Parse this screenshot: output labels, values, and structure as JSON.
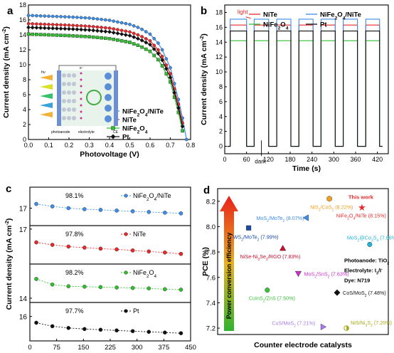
{
  "panels": {
    "a": {
      "letter": "a"
    },
    "b": {
      "letter": "b"
    },
    "c": {
      "letter": "c"
    },
    "d": {
      "letter": "d"
    }
  },
  "chart_data": [
    {
      "id": "a",
      "type": "line",
      "xlabel": "Photovoltage (V)",
      "ylabel": "Current density (mA cm⁻²)",
      "xlim": [
        0.0,
        0.8
      ],
      "ylim": [
        0,
        18
      ],
      "xticks": [
        "0.0",
        "0.1",
        "0.2",
        "0.3",
        "0.4",
        "0.5",
        "0.6",
        "0.7",
        "0.8"
      ],
      "yticks": [
        "0",
        "2",
        "4",
        "6",
        "8",
        "10",
        "12",
        "14",
        "16",
        "18"
      ],
      "legend_position": "center-right",
      "series": [
        {
          "name": "NiFe₂O₄/NiTe",
          "color": "#3c8ee8",
          "marker": "circle",
          "jsc": 16.6,
          "voc": 0.78,
          "x": [
            0,
            0.1,
            0.2,
            0.3,
            0.4,
            0.5,
            0.55,
            0.6,
            0.65,
            0.7,
            0.75,
            0.78
          ],
          "y": [
            16.6,
            16.5,
            16.4,
            16.25,
            15.95,
            15.4,
            14.9,
            14.1,
            12.6,
            9.6,
            4.3,
            0
          ]
        },
        {
          "name": "NiTe",
          "color": "#e8282a",
          "marker": "circle",
          "jsc": 15.5,
          "voc": 0.775,
          "x": [
            0,
            0.1,
            0.2,
            0.3,
            0.4,
            0.5,
            0.55,
            0.6,
            0.65,
            0.7,
            0.75,
            0.775
          ],
          "y": [
            15.5,
            15.4,
            15.3,
            15.15,
            14.9,
            14.4,
            13.9,
            13.2,
            11.7,
            8.8,
            3.7,
            0
          ]
        },
        {
          "name": "NiFe₂O₄",
          "color": "#2fbf2f",
          "marker": "square",
          "jsc": 14.1,
          "voc": 0.768,
          "x": [
            0,
            0.1,
            0.2,
            0.3,
            0.4,
            0.5,
            0.55,
            0.6,
            0.65,
            0.7,
            0.75,
            0.768
          ],
          "y": [
            14.1,
            14.0,
            13.9,
            13.75,
            13.5,
            13.0,
            12.5,
            11.8,
            10.4,
            7.7,
            2.6,
            0
          ]
        },
        {
          "name": "Pt",
          "color": "#111111",
          "marker": "diamond",
          "jsc": 15.0,
          "voc": 0.772,
          "x": [
            0,
            0.1,
            0.2,
            0.3,
            0.4,
            0.5,
            0.55,
            0.6,
            0.65,
            0.7,
            0.75,
            0.772
          ],
          "y": [
            15.0,
            14.9,
            14.8,
            14.65,
            14.4,
            13.9,
            13.4,
            12.7,
            11.2,
            8.3,
            3.2,
            0
          ]
        }
      ],
      "inset_labels": {
        "hv": "hν",
        "photoanode": "photoanode",
        "electrolyte": "electrolyte",
        "ce": "CE",
        "electron": "e⁻"
      }
    },
    {
      "id": "b",
      "type": "line",
      "xlabel": "Time (s)",
      "ylabel": "Current density (mA cm⁻²)",
      "xlim": [
        0,
        450
      ],
      "ylim": [
        -1,
        19
      ],
      "xticks": [
        "0",
        "60",
        "120",
        "180",
        "240",
        "300",
        "360",
        "420"
      ],
      "yticks": [
        "0",
        "2",
        "4",
        "6",
        "8",
        "10",
        "12",
        "14",
        "16",
        "18"
      ],
      "legend_position": "top",
      "light_on": [
        [
          15,
          60
        ],
        [
          81,
          121
        ],
        [
          143,
          182
        ],
        [
          204,
          243
        ],
        [
          265,
          304
        ],
        [
          326,
          365
        ],
        [
          388,
          426
        ]
      ],
      "annotations": {
        "light": "light",
        "dark": "dark"
      },
      "series": [
        {
          "name": "NiTe",
          "color": "#e8282a",
          "plateau": 16.3
        },
        {
          "name": "NiFe₂O₄/NiTe",
          "color": "#3c8ee8",
          "plateau": 17.1
        },
        {
          "name": "NiFe₂O₄",
          "color": "#2fbf2f",
          "plateau": 14.2
        },
        {
          "name": "Pt",
          "color": "#111111",
          "plateau": 15.5
        }
      ]
    },
    {
      "id": "c",
      "type": "scatter",
      "xlabel": "Time (s)",
      "ylabel": "Current density (mA cm⁻²)",
      "xlim": [
        0,
        450
      ],
      "xticks": [
        "0",
        "75",
        "150",
        "225",
        "300",
        "375",
        "450"
      ],
      "x": [
        18,
        63,
        108,
        153,
        198,
        243,
        288,
        333,
        378,
        423
      ],
      "panels": [
        {
          "name": "NiFe₂O₄/NiTe",
          "color": "#3c8ee8",
          "retention": "98.1%",
          "ylim": [
            16.5,
            17.6
          ],
          "yticks": [
            "17"
          ],
          "y": [
            17.12,
            17.05,
            17.0,
            16.97,
            16.95,
            16.93,
            16.91,
            16.89,
            16.87,
            16.85
          ]
        },
        {
          "name": "NiTe",
          "color": "#e8282a",
          "retention": "97.8%",
          "ylim": [
            16.0,
            17.1
          ],
          "yticks": [
            "17"
          ],
          "y": [
            16.62,
            16.55,
            16.5,
            16.47,
            16.44,
            16.42,
            16.39,
            16.36,
            16.33,
            16.29
          ]
        },
        {
          "name": "NiFe₂O₄",
          "color": "#2fbf2f",
          "retention": "98.2%",
          "ylim": [
            13.9,
            14.8
          ],
          "yticks": [
            "14"
          ],
          "y": [
            14.45,
            14.32,
            14.28,
            14.27,
            14.26,
            14.25,
            14.24,
            14.23,
            14.21,
            14.2
          ]
        },
        {
          "name": "Pt",
          "color": "#111111",
          "retention": "97.7%",
          "ylim": [
            15.3,
            16.4
          ],
          "yticks": [
            "16"
          ],
          "y": [
            15.82,
            15.72,
            15.67,
            15.64,
            15.62,
            15.6,
            15.58,
            15.56,
            15.54,
            15.52
          ]
        }
      ]
    },
    {
      "id": "d",
      "type": "scatter",
      "xlabel": "Counter electrode catalysts",
      "ylabel": "PCE (%)",
      "ylim": [
        7.15,
        8.3
      ],
      "yticks": [
        "7.2",
        "7.4",
        "7.6",
        "7.8",
        "8.0",
        "8.2"
      ],
      "arrow_label": "Power conversion efficiency",
      "info_lines": [
        "Photoanode: TiO₂",
        "Electrolyte: I₃/I⁻",
        "Dye: N719"
      ],
      "this_work_label": "This work",
      "points": [
        {
          "label": "NiS₂/CoS₂ (8.22%)",
          "value": 8.22,
          "color": "#f0a020",
          "marker": "hexagon",
          "slot": 7.2
        },
        {
          "label": "NiFe₂O₄/NiTe (8.15%)",
          "value": 8.15,
          "color": "#e8282a",
          "marker": "star",
          "slot": 9.3
        },
        {
          "label": "MoS₂/MoTe₂ (8.07%)",
          "value": 8.07,
          "color": "#3c8ee8",
          "marker": "triangle-left",
          "slot": 5.7
        },
        {
          "label": "WS₂/MoTe₂ (7.99%)",
          "value": 7.99,
          "color": "#1a4aa8",
          "marker": "square",
          "slot": 2.0
        },
        {
          "label": "MoS₂@Co₃S₄ (7.86%)",
          "value": 7.86,
          "color": "#22b4d6",
          "marker": "circle",
          "slot": 9.8
        },
        {
          "label": "NiSe-Ni₃Se₂/RGO (7.83%)",
          "value": 7.83,
          "color": "#c8102e",
          "marker": "triangle-up",
          "slot": 4.2
        },
        {
          "label": "MoS₂/SnS₂ (7.63%)",
          "value": 7.63,
          "color": "#c832c8",
          "marker": "down-triangle",
          "slot": 5.2
        },
        {
          "label": "CuInS₂/ZnS (7.50%)",
          "value": 7.5,
          "color": "#3ac23a",
          "marker": "circle",
          "slot": 3.2
        },
        {
          "label": "CoS/MoS₂ (7.48%)",
          "value": 7.48,
          "color": "#111111",
          "marker": "diamond",
          "slot": 7.7
        },
        {
          "label": "CuS/MoS₂ (7.21%)",
          "value": 7.21,
          "color": "#a77be8",
          "marker": "triangle-right",
          "slot": 6.8
        },
        {
          "label": "NiS/Ni₃S₂ (7.20%)",
          "value": 7.2,
          "color": "#a8a81a",
          "marker": "circle-half",
          "slot": 8.3
        }
      ]
    }
  ]
}
